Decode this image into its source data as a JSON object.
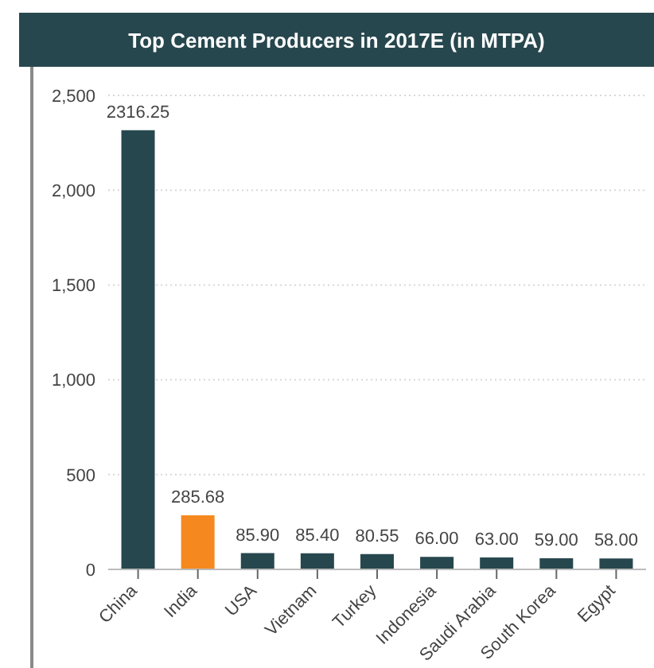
{
  "chart_data": {
    "type": "bar",
    "title": "Top Cement Producers in 2017E (in MTPA)",
    "categories": [
      "China",
      "India",
      "USA",
      "Vietnam",
      "Turkey",
      "Indonesia",
      "Saudi Arabia",
      "South Korea",
      "Egypt"
    ],
    "values": [
      2316.25,
      285.68,
      85.9,
      85.4,
      80.55,
      66.0,
      63.0,
      59.0,
      58.0
    ],
    "value_labels": [
      "2316.25",
      "285.68",
      "85.90",
      "85.40",
      "80.55",
      "66.00",
      "63.00",
      "59.00",
      "58.00"
    ],
    "colors": [
      "#27474e",
      "#f5891f",
      "#27474e",
      "#27474e",
      "#27474e",
      "#27474e",
      "#27474e",
      "#27474e",
      "#27474e"
    ],
    "ylim": [
      0,
      2500
    ],
    "yticks": [
      {
        "value": 0,
        "label": "0"
      },
      {
        "value": 500,
        "label": "500"
      },
      {
        "value": 1000,
        "label": "1,000"
      },
      {
        "value": 1500,
        "label": "1,500"
      },
      {
        "value": 2000,
        "label": "2,000"
      },
      {
        "value": 2500,
        "label": "2,500"
      }
    ],
    "grid": "y"
  }
}
